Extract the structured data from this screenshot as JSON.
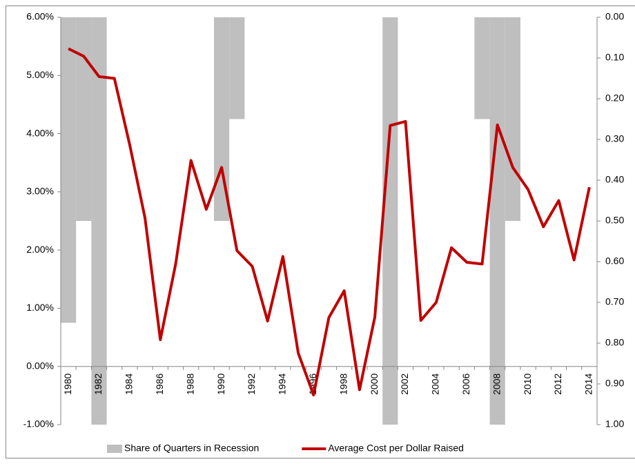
{
  "chart_data": {
    "type": "combo",
    "categories": [
      "1980",
      null,
      "1982",
      null,
      "1984",
      null,
      "1986",
      null,
      "1988",
      null,
      "1990",
      null,
      "1992",
      null,
      "1994",
      null,
      "1996",
      null,
      "1998",
      null,
      "2000",
      null,
      "2002",
      null,
      "2004",
      null,
      "2006",
      null,
      "2008",
      null,
      "2010",
      null,
      "2012",
      null,
      "2014"
    ],
    "series": [
      {
        "name": "Share of Quarters in Recession",
        "type": "bar",
        "axis": "y2",
        "color": "#bfbfbf",
        "values": [
          0.75,
          0.5,
          1.0,
          0,
          0,
          0,
          0,
          0,
          0,
          0,
          0.5,
          0.25,
          0,
          0,
          0,
          0,
          0,
          0,
          0,
          0,
          0,
          1.0,
          0,
          0,
          0,
          0,
          0,
          0.25,
          1.0,
          0.5,
          0,
          0,
          0,
          0,
          0
        ]
      },
      {
        "name": "Average Cost per Dollar Raised",
        "type": "line",
        "color": "#c00000",
        "values": [
          5.46,
          5.33,
          4.98,
          4.95,
          3.81,
          2.55,
          0.46,
          1.76,
          3.54,
          2.7,
          3.42,
          1.99,
          1.72,
          0.78,
          1.89,
          0.23,
          -0.49,
          0.84,
          1.3,
          -0.4,
          0.85,
          4.14,
          4.21,
          0.79,
          1.1,
          2.04,
          1.79,
          1.76,
          4.15,
          3.42,
          3.04,
          2.4,
          2.85,
          1.83,
          3.08
        ]
      }
    ],
    "ylim": [
      -1,
      6
    ],
    "yticks": [
      {
        "value": -1,
        "label": "-1.00%"
      },
      {
        "value": 0,
        "label": "0.00%"
      },
      {
        "value": 1,
        "label": "1.00%"
      },
      {
        "value": 2,
        "label": "2.00%"
      },
      {
        "value": 3,
        "label": "3.00%"
      },
      {
        "value": 4,
        "label": "4.00%"
      },
      {
        "value": 5,
        "label": "5.00%"
      },
      {
        "value": 6,
        "label": "6.00%"
      }
    ],
    "y2lim": [
      1,
      0
    ],
    "y2ticks": [
      {
        "value": 0,
        "label": "0.00"
      },
      {
        "value": 0.1,
        "label": "0.10"
      },
      {
        "value": 0.2,
        "label": "0.20"
      },
      {
        "value": 0.3,
        "label": "0.30"
      },
      {
        "value": 0.4,
        "label": "0.40"
      },
      {
        "value": 0.5,
        "label": "0.50"
      },
      {
        "value": 0.6,
        "label": "0.60"
      },
      {
        "value": 0.7,
        "label": "0.70"
      },
      {
        "value": 0.8,
        "label": "0.80"
      },
      {
        "value": 0.9,
        "label": "0.90"
      },
      {
        "value": 1,
        "label": "1.00"
      }
    ],
    "grid": false,
    "legend": "bottom"
  }
}
